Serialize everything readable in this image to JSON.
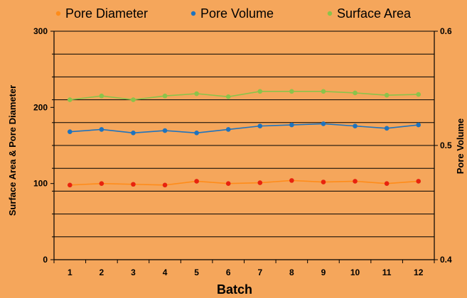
{
  "chart_data": {
    "type": "line",
    "xlabel": "Batch",
    "ylabel_left": "Surface Area & Pore Diameter",
    "ylabel_right": "Pore Volume",
    "categories": [
      "1",
      "2",
      "3",
      "4",
      "5",
      "6",
      "7",
      "8",
      "9",
      "10",
      "11",
      "12"
    ],
    "ylim_left": [
      0,
      300
    ],
    "ylim_right": [
      0.4,
      0.6
    ],
    "yticks_left": [
      "0",
      "100",
      "200",
      "300"
    ],
    "yticks_right": [
      "0.4",
      "0.5",
      "0.6"
    ],
    "grid": true,
    "legend_position": "top",
    "series": [
      {
        "name": "Pore Diameter",
        "axis": "left",
        "color": "#FF8C1A",
        "marker_color": "#E8230E",
        "values": [
          98,
          100,
          99,
          98,
          103,
          100,
          101,
          104,
          102,
          103,
          100,
          103
        ]
      },
      {
        "name": "Pore Volume",
        "axis": "right",
        "color": "#1E73BE",
        "marker_color": "#1E73BE",
        "values": [
          0.512,
          0.514,
          0.511,
          0.513,
          0.511,
          0.514,
          0.517,
          0.518,
          0.519,
          0.517,
          0.515,
          0.518
        ]
      },
      {
        "name": "Surface Area",
        "axis": "left",
        "color": "#8BC34A",
        "marker_color": "#8BC34A",
        "values": [
          210,
          215,
          210,
          215,
          218,
          214,
          221,
          221,
          221,
          219,
          216,
          217
        ]
      }
    ]
  }
}
